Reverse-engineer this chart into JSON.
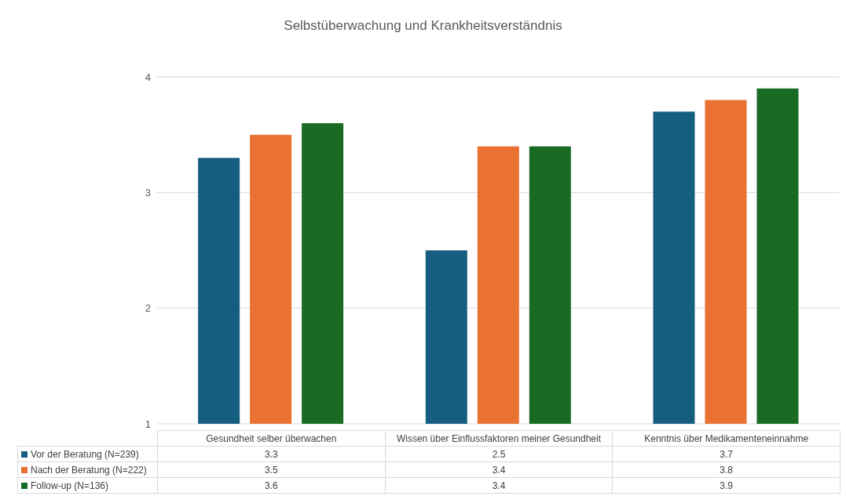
{
  "chart_data": {
    "type": "bar",
    "title": "Selbstüberwachung und Krankheitsverständnis",
    "categories": [
      "Gesundheit selber überwachen",
      "Wissen über Einflussfaktoren meiner Gesundheit",
      "Kenntnis über Medikamenteneinnahme"
    ],
    "series": [
      {
        "name": "Vor der Beratung (N=239)",
        "color": "#165e80",
        "values": [
          3.3,
          2.5,
          3.7
        ]
      },
      {
        "name": "Nach der Beratung (N=222)",
        "color": "#e97132",
        "values": [
          3.5,
          3.4,
          3.8
        ]
      },
      {
        "name": "Follow-up (N=136)",
        "color": "#196b24",
        "values": [
          3.6,
          3.4,
          3.9
        ]
      }
    ],
    "ylim": [
      1,
      4
    ],
    "yticks": [
      1,
      2,
      3,
      4
    ],
    "grid": "y",
    "legend": "bottom",
    "data_labels": true
  }
}
